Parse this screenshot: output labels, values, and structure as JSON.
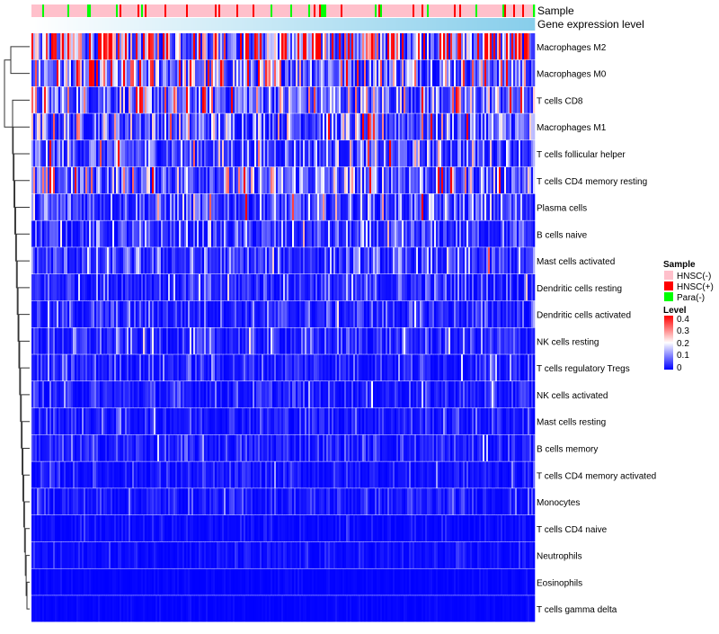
{
  "chart_data": {
    "type": "heatmap",
    "annotation_labels": [
      "Sample",
      "Gene expression level"
    ],
    "rows": [
      "Macrophages M2",
      "Macrophages M0",
      "T cells CD8",
      "Macrophages M1",
      "T cells follicular helper",
      "T cells CD4 memory resting",
      "Plasma cells",
      "B cells naive",
      "Mast cells activated",
      "Dendritic cells resting",
      "Dendritic cells activated",
      "NK cells resting",
      "T cells regulatory  Tregs",
      "NK cells activated",
      "Mast cells resting",
      "B cells memory",
      "T cells CD4 memory activated",
      "Monocytes",
      "T cells CD4 naive",
      "Neutrophils",
      "Eosinophils",
      "T cells gamma delta"
    ],
    "row_mean_level": [
      0.24,
      0.15,
      0.12,
      0.1,
      0.08,
      0.11,
      0.07,
      0.05,
      0.05,
      0.045,
      0.04,
      0.04,
      0.035,
      0.03,
      0.03,
      0.03,
      0.02,
      0.025,
      0.01,
      0.012,
      0.004,
      0.004
    ],
    "n_columns": 280,
    "sample_legend": {
      "title": "Sample",
      "entries": [
        {
          "label": "HNSC(-)",
          "color": "#FFC0CB"
        },
        {
          "label": "HNSC(+)",
          "color": "#FF0000"
        },
        {
          "label": "Para(-)",
          "color": "#00FF00"
        }
      ]
    },
    "sample_fraction": {
      "HNSC(-)": 0.82,
      "HNSC(+)": 0.1,
      "Para(-)": 0.08
    },
    "level_legend": {
      "title": "Level",
      "ticks": [
        "0.4",
        "0.3",
        "0.2",
        "0.1",
        "0"
      ],
      "range": [
        0,
        0.4
      ],
      "colors": [
        "#0000FF",
        "#FFFFFF",
        "#FF0000"
      ]
    },
    "gene_expression_colors": [
      "#FFFFFF",
      "#87CEEB"
    ]
  }
}
